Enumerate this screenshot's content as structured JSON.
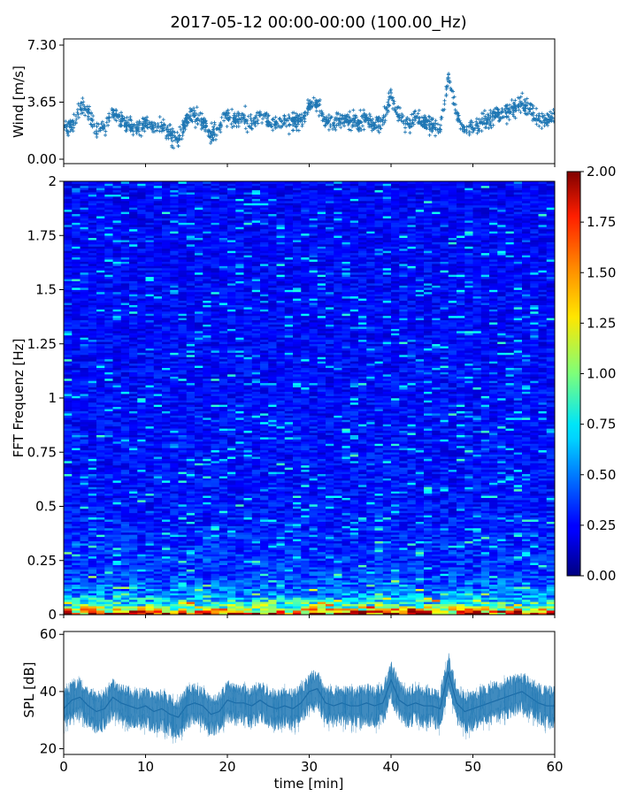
{
  "figure": {
    "title": "2017-05-12 00:00-00:00 (100.00_Hz)"
  },
  "chart_data": [
    {
      "type": "scatter",
      "panel": "wind",
      "ylabel": "Wind [m/s]",
      "ylim": [
        0,
        7.3
      ],
      "yticks": [
        "0.00",
        "3.65",
        "7.30"
      ],
      "xlim": [
        0,
        60
      ],
      "marker": "+",
      "color": "#1f77b4",
      "series": [
        {
          "x": [
            0,
            1,
            2,
            3,
            4,
            5,
            6,
            7,
            8,
            9,
            10,
            11,
            12,
            13,
            14,
            15,
            16,
            17,
            18,
            19,
            20,
            21,
            22,
            23,
            24,
            25,
            26,
            27,
            28,
            29,
            30,
            31,
            32,
            33,
            34,
            35,
            36,
            37,
            38,
            39,
            40,
            41,
            42,
            43,
            44,
            45,
            46,
            47,
            48,
            49,
            50,
            51,
            52,
            53,
            54,
            55,
            56,
            57,
            58,
            59,
            60
          ],
          "y": [
            2.2,
            2.0,
            3.4,
            3.0,
            1.8,
            2.1,
            3.1,
            2.4,
            2.2,
            2.0,
            2.3,
            2.0,
            2.1,
            1.6,
            1.2,
            2.6,
            2.8,
            2.4,
            1.5,
            2.0,
            2.9,
            2.5,
            2.7,
            2.3,
            2.8,
            2.4,
            2.3,
            2.5,
            2.2,
            2.6,
            3.4,
            3.5,
            2.4,
            2.2,
            2.6,
            2.4,
            2.3,
            2.6,
            2.2,
            2.5,
            4.0,
            2.8,
            2.3,
            2.6,
            2.4,
            2.2,
            1.9,
            5.2,
            3.0,
            1.8,
            2.0,
            2.4,
            2.6,
            2.8,
            3.0,
            3.3,
            3.6,
            3.2,
            2.6,
            2.5,
            2.6
          ]
        }
      ]
    },
    {
      "type": "heatmap",
      "panel": "spectrogram",
      "ylabel": "FFT Frequenz [Hz]",
      "ylim": [
        0,
        2
      ],
      "yticks": [
        "0",
        "0.25",
        "0.5",
        "0.75",
        "1",
        "1.25",
        "1.5",
        "1.75",
        "2"
      ],
      "xlim": [
        0,
        60
      ],
      "colorbar": {
        "range": [
          0,
          2
        ],
        "ticks": [
          "0.00",
          "0.25",
          "0.50",
          "0.75",
          "1.00",
          "1.25",
          "1.50",
          "1.75",
          "2.00"
        ],
        "colormap": "jet"
      },
      "typical_level_by_frequency": [
        {
          "f": 0.0,
          "level": 1.9
        },
        {
          "f": 0.02,
          "level": 1.2
        },
        {
          "f": 0.05,
          "level": 0.8
        },
        {
          "f": 0.1,
          "level": 0.5
        },
        {
          "f": 0.2,
          "level": 0.35
        },
        {
          "f": 0.5,
          "level": 0.28
        },
        {
          "f": 1.0,
          "level": 0.26
        },
        {
          "f": 2.0,
          "level": 0.24
        }
      ]
    },
    {
      "type": "line",
      "panel": "spl",
      "ylabel": "SPL [dB]",
      "xlabel": "time [min]",
      "ylim": [
        18,
        61
      ],
      "yticks": [
        "20",
        "40",
        "60"
      ],
      "xlim": [
        0,
        60
      ],
      "xticks": [
        "0",
        "10",
        "20",
        "30",
        "40",
        "50",
        "60"
      ],
      "color": "#1f77b4",
      "series": [
        {
          "x": [
            0,
            1,
            2,
            3,
            4,
            5,
            6,
            7,
            8,
            9,
            10,
            11,
            12,
            13,
            14,
            15,
            16,
            17,
            18,
            19,
            20,
            21,
            22,
            23,
            24,
            25,
            26,
            27,
            28,
            29,
            30,
            31,
            32,
            33,
            34,
            35,
            36,
            37,
            38,
            39,
            40,
            41,
            42,
            43,
            44,
            45,
            46,
            47,
            48,
            49,
            50,
            51,
            52,
            53,
            54,
            55,
            56,
            57,
            58,
            59,
            60
          ],
          "y": [
            34,
            37,
            38,
            35,
            33,
            34,
            38,
            36,
            35,
            34,
            35,
            33,
            34,
            32,
            31,
            35,
            36,
            35,
            32,
            33,
            37,
            36,
            36,
            35,
            37,
            35,
            34,
            35,
            34,
            36,
            40,
            41,
            36,
            35,
            36,
            35,
            35,
            36,
            35,
            36,
            44,
            37,
            35,
            36,
            35,
            35,
            34,
            47,
            36,
            33,
            34,
            35,
            36,
            37,
            38,
            39,
            40,
            38,
            36,
            35,
            35
          ]
        }
      ]
    }
  ]
}
